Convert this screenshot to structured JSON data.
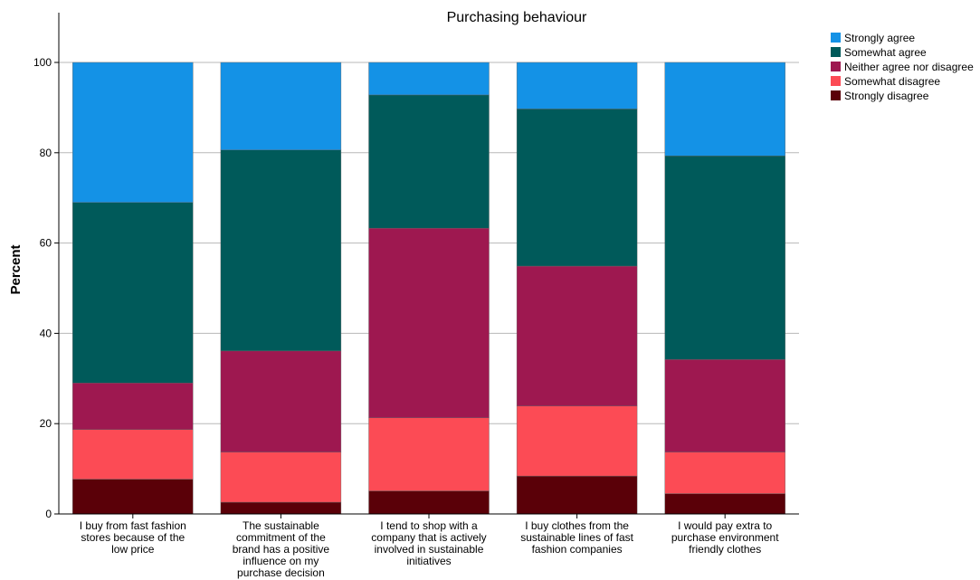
{
  "chart_data": {
    "type": "bar",
    "stacked": true,
    "title": "Purchasing behaviour",
    "xlabel": "",
    "ylabel": "Percent",
    "ylim": [
      0,
      110
    ],
    "yticks": [
      0,
      20,
      40,
      60,
      80,
      100
    ],
    "grid": true,
    "legend_position": "top-right",
    "categories": [
      "I buy from fast fashion stores because of the low price",
      "The sustainable commitment of the brand has a positive influence on my purchase decision",
      "I tend to shop with a company that is actively involved in sustainable initiatives",
      "I buy clothes from the sustainable lines of fast fashion companies",
      "I would pay extra to purchase environment friendly clothes"
    ],
    "category_lines": [
      [
        "I buy from fast fashion",
        "stores because of the",
        "low price"
      ],
      [
        "The sustainable",
        "commitment of the",
        "brand has a positive",
        "influence on my",
        "purchase decision"
      ],
      [
        "I tend to shop with a",
        "company that is actively",
        "involved in sustainable",
        "initiatives"
      ],
      [
        "I buy clothes from the",
        "sustainable lines of fast",
        "fashion companies"
      ],
      [
        "I would pay extra to",
        "purchase environment",
        "friendly clothes"
      ]
    ],
    "series": [
      {
        "name": "Strongly disagree",
        "color": "#5a0008",
        "values": [
          7.7,
          2.6,
          5.1,
          8.4,
          4.5
        ]
      },
      {
        "name": "Somewhat disagree",
        "color": "#fc4b55",
        "values": [
          11.0,
          11.1,
          16.2,
          15.5,
          9.2
        ]
      },
      {
        "name": "Neither agree nor disagree",
        "color": "#9e1850",
        "values": [
          10.3,
          22.4,
          42.0,
          31.0,
          20.5
        ]
      },
      {
        "name": "Somewhat agree",
        "color": "#005a5a",
        "values": [
          40.0,
          44.5,
          29.5,
          34.8,
          45.1
        ]
      },
      {
        "name": "Strongly agree",
        "color": "#1492e6",
        "values": [
          31.0,
          19.4,
          7.2,
          10.3,
          20.7
        ]
      }
    ],
    "legend_order": [
      "Strongly agree",
      "Somewhat agree",
      "Neither agree nor disagree",
      "Somewhat disagree",
      "Strongly disagree"
    ]
  }
}
